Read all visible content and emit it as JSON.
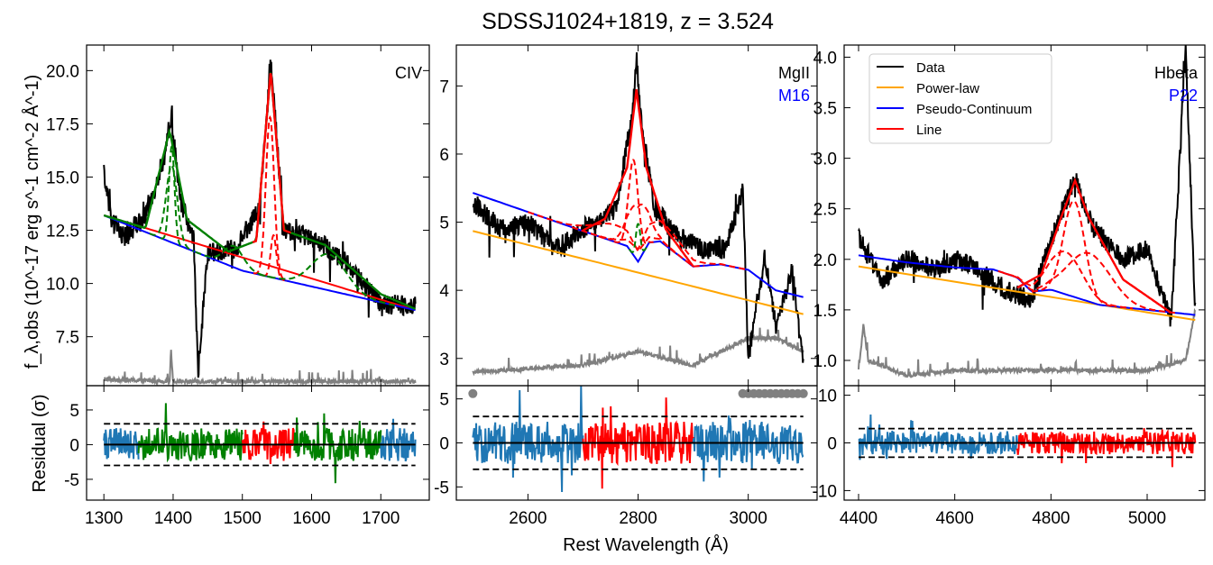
{
  "figure": {
    "title": "SDSSJ1024+1819, z = 3.524",
    "xlabel": "Rest Wavelength (Å)",
    "ylabel_top": "f_λ,obs (10^-17 erg s^-1 cm^-2 Å^-1)",
    "ylabel_bottom": "Residual (σ)"
  },
  "colors": {
    "data": "#000000",
    "error": "#808080",
    "powerlaw": "#ffa500",
    "pseudo_continuum": "#0000ff",
    "line": "#ff0000",
    "secondary_line": "#008000",
    "residual": "#1f77b4"
  },
  "legend": {
    "placement": "upper-left of right panel",
    "entries": [
      {
        "label": "Data",
        "color": "#000000"
      },
      {
        "label": "Power-law",
        "color": "#ffa500"
      },
      {
        "label": "Pseudo-Continuum",
        "color": "#0000ff"
      },
      {
        "label": "Line",
        "color": "#ff0000"
      }
    ]
  },
  "chart_data": [
    {
      "type": "line",
      "panel": "CIV",
      "label": "CIV",
      "sublabel": "",
      "xlim": [
        1275,
        1770
      ],
      "ylim": [
        5.2,
        21.2
      ],
      "xticks": [
        1300,
        1400,
        1500,
        1600,
        1700
      ],
      "yticks": [
        7.5,
        10.0,
        12.5,
        15.0,
        17.5,
        20.0
      ],
      "ytick_labels": [
        "7.5",
        "10.0",
        "12.5",
        "15.0",
        "17.5",
        "20.0"
      ],
      "continuum": {
        "x": [
          1300,
          1750
        ],
        "y": [
          13.2,
          8.75
        ]
      },
      "pseudo_continuum": {
        "x": [
          1300,
          1500,
          1750
        ],
        "y": [
          13.2,
          10.6,
          8.75
        ]
      },
      "line_components": [
        {
          "kind": "secondary",
          "center": 1398,
          "amp": 3.6,
          "sigma": 8
        },
        {
          "kind": "secondary",
          "center": 1398,
          "amp": 4.5,
          "sigma": 4
        },
        {
          "kind": "main",
          "center": 1540,
          "amp": 7.5,
          "sigma": 6
        },
        {
          "kind": "main",
          "center": 1545,
          "amp": 2.0,
          "sigma": 4
        },
        {
          "kind": "secondary",
          "center": 1625,
          "amp": 1.7,
          "sigma": 25
        },
        {
          "kind": "secondary",
          "center": 1488,
          "amp": 1.0,
          "sigma": 14
        }
      ],
      "total_model": {
        "x": [
          1300,
          1360,
          1395,
          1420,
          1480,
          1520,
          1541,
          1560,
          1620,
          1700,
          1750
        ],
        "y": [
          13.2,
          12.6,
          17.2,
          13.0,
          11.5,
          12.0,
          20.0,
          12.5,
          11.8,
          9.5,
          8.8
        ]
      },
      "data_spectrum": {
        "x": [
          1300,
          1310,
          1330,
          1360,
          1385,
          1397,
          1410,
          1430,
          1436,
          1450,
          1490,
          1525,
          1541,
          1560,
          1600,
          1650,
          1700,
          1750
        ],
        "y": [
          15.3,
          13.0,
          12.2,
          13.2,
          15.5,
          17.9,
          14.0,
          12.0,
          5.8,
          11.4,
          11.6,
          13.6,
          20.4,
          12.5,
          12.2,
          11.0,
          9.0,
          9.0
        ]
      },
      "error_spectrum": {
        "x": [
          1300,
          1395,
          1397,
          1400,
          1750
        ],
        "y": [
          5.5,
          5.4,
          6.9,
          5.4,
          5.4
        ]
      },
      "fit_windows": [
        [
          1300,
          1350,
          "residual"
        ],
        [
          1350,
          1500,
          "secondary"
        ],
        [
          1500,
          1575,
          "main"
        ],
        [
          1575,
          1700,
          "secondary"
        ],
        [
          1700,
          1750,
          "residual"
        ]
      ],
      "residual": {
        "ylim": [
          -8,
          8.5
        ],
        "yticks": [
          -5,
          0,
          5
        ],
        "threshold": 3
      }
    },
    {
      "type": "line",
      "panel": "MgII",
      "label": "MgII",
      "sublabel": "M16",
      "xlim": [
        2470,
        3125
      ],
      "ylim": [
        2.6,
        7.6
      ],
      "xticks": [
        2600,
        2800,
        3000
      ],
      "yticks": [
        3,
        4,
        5,
        6,
        7
      ],
      "ytick_labels": [
        "3",
        "4",
        "5",
        "6",
        "7"
      ],
      "continuum": {
        "x": [
          2500,
          3100
        ],
        "y": [
          4.87,
          3.65
        ]
      },
      "pseudo_continuum": {
        "x": [
          2500,
          2600,
          2700,
          2780,
          2800,
          2820,
          2840,
          2900,
          2950,
          3000,
          3050,
          3100
        ],
        "y": [
          5.43,
          5.15,
          4.87,
          4.65,
          4.42,
          4.7,
          4.72,
          4.35,
          4.38,
          4.3,
          4.0,
          3.9
        ]
      },
      "line_components": [
        {
          "kind": "main",
          "center": 2792,
          "amp": 1.4,
          "sigma": 9
        },
        {
          "kind": "main",
          "center": 2800,
          "amp": 0.8,
          "sigma": 18
        },
        {
          "kind": "main",
          "center": 2760,
          "amp": 0.25,
          "sigma": 40
        },
        {
          "kind": "main",
          "center": 2840,
          "amp": 0.3,
          "sigma": 40
        },
        {
          "kind": "secondary",
          "center": 2800,
          "amp": 0.55,
          "sigma": 4
        }
      ],
      "total_model": {
        "x": [
          2700,
          2740,
          2780,
          2797,
          2815,
          2850,
          2900
        ],
        "y": [
          4.88,
          5.05,
          5.8,
          6.95,
          5.8,
          4.9,
          4.35
        ]
      },
      "data_spectrum": {
        "x": [
          2500,
          2550,
          2600,
          2650,
          2700,
          2760,
          2790,
          2797,
          2805,
          2830,
          2870,
          2920,
          2960,
          2990,
          3000,
          3030,
          3050,
          3080,
          3100
        ],
        "y": [
          5.3,
          4.9,
          5.0,
          4.6,
          4.9,
          5.2,
          6.6,
          7.4,
          6.5,
          5.2,
          4.8,
          4.6,
          4.6,
          5.5,
          3.0,
          4.5,
          3.5,
          4.3,
          2.9
        ]
      },
      "error_spectrum": {
        "x": [
          2500,
          2700,
          2800,
          2900,
          3000,
          3050,
          3100
        ],
        "y": [
          2.8,
          2.9,
          3.1,
          2.9,
          3.3,
          3.3,
          3.1
        ]
      },
      "fit_windows": [
        [
          2500,
          2700,
          "residual"
        ],
        [
          2700,
          2900,
          "main"
        ],
        [
          2900,
          3100,
          "residual"
        ]
      ],
      "masked_points": {
        "x": [
          2500,
          2990,
          3000,
          3010,
          3020,
          3030,
          3040,
          3050,
          3060,
          3070,
          3080,
          3090,
          3100
        ]
      },
      "residual": {
        "ylim": [
          -6.5,
          6.5
        ],
        "yticks": [
          -5,
          0,
          5
        ],
        "threshold": 3
      }
    },
    {
      "type": "line",
      "panel": "Hbeta",
      "label": "Hbeta",
      "sublabel": "P22",
      "xlim": [
        4370,
        5120
      ],
      "ylim": [
        0.75,
        4.12
      ],
      "xticks": [
        4400,
        4600,
        4800,
        5000
      ],
      "yticks": [
        1.0,
        1.5,
        2.0,
        2.5,
        3.0,
        3.5,
        4.0
      ],
      "ytick_labels": [
        "1.0",
        "1.5",
        "2.0",
        "2.5",
        "3.0",
        "3.5",
        "4.0"
      ],
      "continuum": {
        "x": [
          4400,
          5100
        ],
        "y": [
          1.93,
          1.4
        ]
      },
      "pseudo_continuum": {
        "x": [
          4400,
          4500,
          4600,
          4680,
          4730,
          4760,
          4800,
          4900,
          5000,
          5100
        ],
        "y": [
          2.04,
          1.97,
          1.92,
          1.9,
          1.82,
          1.68,
          1.7,
          1.55,
          1.5,
          1.45
        ]
      },
      "line_components": [
        {
          "kind": "main",
          "center": 4848,
          "amp": 0.95,
          "sigma": 22
        },
        {
          "kind": "main",
          "center": 4830,
          "amp": 0.42,
          "sigma": 35
        },
        {
          "kind": "main",
          "center": 4880,
          "amp": 0.48,
          "sigma": 45
        }
      ],
      "total_model": {
        "x": [
          4730,
          4780,
          4820,
          4850,
          4880,
          4950,
          5050
        ],
        "y": [
          1.72,
          1.85,
          2.4,
          2.78,
          2.4,
          1.8,
          1.47
        ]
      },
      "data_spectrum": {
        "x": [
          4400,
          4450,
          4500,
          4560,
          4600,
          4650,
          4700,
          4760,
          4800,
          4850,
          4890,
          4950,
          5000,
          5050,
          5080,
          5100
        ],
        "y": [
          2.2,
          1.8,
          2.0,
          1.9,
          2.0,
          1.9,
          1.7,
          1.6,
          2.2,
          2.8,
          2.3,
          2.0,
          2.1,
          1.4,
          4.1,
          1.5
        ]
      },
      "error_spectrum": {
        "x": [
          4400,
          4410,
          4420,
          4500,
          4600,
          4800,
          5000,
          5080,
          5100
        ],
        "y": [
          0.9,
          1.35,
          1.0,
          0.85,
          0.9,
          0.9,
          0.9,
          1.0,
          1.5
        ]
      },
      "fit_windows": [
        [
          4400,
          4730,
          "residual"
        ],
        [
          4730,
          5100,
          "main"
        ]
      ],
      "residual": {
        "ylim": [
          -12,
          12
        ],
        "yticks": [
          -10,
          0,
          10
        ],
        "threshold": 3
      }
    }
  ]
}
